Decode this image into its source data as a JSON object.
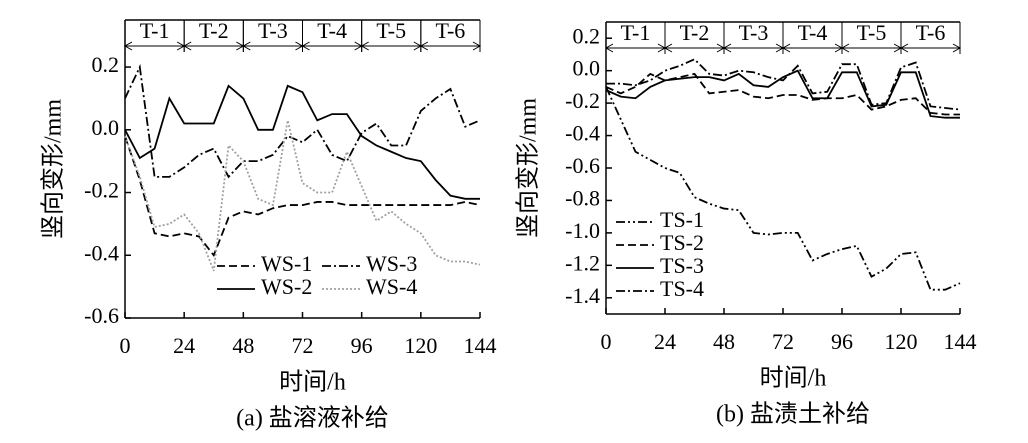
{
  "chart_data": [
    {
      "type": "line",
      "caption": "(a) 盐溶液补给",
      "xlabel": "时间/h",
      "ylabel": "竖向变形/mm",
      "x": [
        0,
        6,
        12,
        18,
        24,
        30,
        36,
        42,
        48,
        54,
        60,
        66,
        72,
        78,
        84,
        90,
        96,
        102,
        108,
        114,
        120,
        126,
        132,
        138,
        144
      ],
      "xlim": [
        0,
        144
      ],
      "xticks": [
        0,
        24,
        48,
        72,
        96,
        120,
        144
      ],
      "ylim": [
        -0.6,
        0.35
      ],
      "yticks": [
        0.2,
        {
          "value": 0,
          "label": "0.0"
        },
        -0.2,
        -0.4,
        -0.6
      ],
      "legend": "lower right",
      "legend_columns": 2,
      "periods": [
        {
          "label": "T-1",
          "start": 0,
          "end": 24
        },
        {
          "label": "T-2",
          "start": 24,
          "end": 48
        },
        {
          "label": "T-3",
          "start": 48,
          "end": 72
        },
        {
          "label": "T-4",
          "start": 72,
          "end": 96
        },
        {
          "label": "T-5",
          "start": 96,
          "end": 120
        },
        {
          "label": "T-6",
          "start": 120,
          "end": 144
        }
      ],
      "series": [
        {
          "name": "WS-1",
          "color": "#000000",
          "style": "dashed",
          "values": [
            -0.02,
            -0.16,
            -0.33,
            -0.34,
            -0.33,
            -0.34,
            -0.4,
            -0.28,
            -0.26,
            -0.27,
            -0.25,
            -0.24,
            -0.24,
            -0.23,
            -0.23,
            -0.24,
            -0.24,
            -0.24,
            -0.24,
            -0.24,
            -0.24,
            -0.24,
            -0.24,
            -0.23,
            -0.24
          ]
        },
        {
          "name": "WS-3",
          "color": "#000000",
          "style": "dashdot",
          "values": [
            0.1,
            0.2,
            -0.15,
            -0.15,
            -0.12,
            -0.08,
            -0.06,
            -0.15,
            -0.1,
            -0.1,
            -0.08,
            -0.02,
            -0.04,
            0.0,
            -0.08,
            -0.1,
            -0.01,
            0.02,
            -0.05,
            -0.05,
            0.06,
            0.1,
            0.13,
            0.01,
            0.03
          ]
        },
        {
          "name": "WS-2",
          "color": "#000000",
          "style": "solid",
          "values": [
            0.0,
            -0.09,
            -0.06,
            0.1,
            0.02,
            0.02,
            0.02,
            0.14,
            0.1,
            0.0,
            0.0,
            0.14,
            0.12,
            0.03,
            0.05,
            0.05,
            -0.02,
            -0.05,
            -0.07,
            -0.09,
            -0.1,
            -0.16,
            -0.21,
            -0.22,
            -0.22
          ]
        },
        {
          "name": "WS-4",
          "color": "#a0a0a0",
          "style": "dotted",
          "values": [
            -0.02,
            -0.15,
            -0.31,
            -0.3,
            -0.27,
            -0.33,
            -0.45,
            -0.05,
            -0.1,
            -0.22,
            -0.24,
            0.03,
            -0.17,
            -0.2,
            -0.2,
            -0.07,
            -0.18,
            -0.29,
            -0.26,
            -0.3,
            -0.33,
            -0.4,
            -0.42,
            -0.42,
            -0.43
          ]
        }
      ]
    },
    {
      "type": "line",
      "caption": "(b) 盐渍土补给",
      "xlabel": "时间/h",
      "ylabel": "竖向变形/mm",
      "x": [
        0,
        6,
        12,
        18,
        24,
        30,
        36,
        42,
        48,
        54,
        60,
        66,
        72,
        78,
        84,
        90,
        96,
        102,
        108,
        114,
        120,
        126,
        132,
        138,
        144
      ],
      "xlim": [
        0,
        144
      ],
      "xticks": [
        0,
        24,
        48,
        72,
        96,
        120,
        144
      ],
      "ylim": [
        -1.5,
        0.3
      ],
      "yticks": [
        0.2,
        {
          "value": 0,
          "label": "0.0"
        },
        -0.2,
        -0.4,
        -0.6,
        -0.8,
        {
          "value": -1,
          "label": "-1.0"
        },
        -1.2,
        -1.4
      ],
      "legend": "lower left",
      "legend_columns": 1,
      "periods": [
        {
          "label": "T-1",
          "start": 0,
          "end": 24
        },
        {
          "label": "T-2",
          "start": 24,
          "end": 48
        },
        {
          "label": "T-3",
          "start": 48,
          "end": 72
        },
        {
          "label": "T-4",
          "start": 72,
          "end": 96
        },
        {
          "label": "T-5",
          "start": 96,
          "end": 120
        },
        {
          "label": "T-6",
          "start": 120,
          "end": 144
        }
      ],
      "series": [
        {
          "name": "TS-1",
          "color": "#000000",
          "style": "dashdotdot",
          "values": [
            -0.1,
            -0.3,
            -0.5,
            -0.55,
            -0.6,
            -0.63,
            -0.78,
            -0.82,
            -0.85,
            -0.86,
            -1.0,
            -1.01,
            -1.0,
            -1.0,
            -1.17,
            -1.13,
            -1.1,
            -1.08,
            -1.27,
            -1.22,
            -1.13,
            -1.12,
            -1.35,
            -1.35,
            -1.31
          ]
        },
        {
          "name": "TS-2",
          "color": "#000000",
          "style": "dashed",
          "values": [
            -0.1,
            -0.14,
            -0.1,
            -0.02,
            -0.06,
            -0.04,
            -0.02,
            -0.14,
            -0.13,
            -0.12,
            -0.16,
            -0.17,
            -0.15,
            -0.15,
            -0.18,
            -0.17,
            -0.17,
            -0.15,
            -0.24,
            -0.22,
            -0.18,
            -0.17,
            -0.26,
            -0.27,
            -0.27
          ]
        },
        {
          "name": "TS-3",
          "color": "#000000",
          "style": "solid",
          "values": [
            -0.12,
            -0.16,
            -0.17,
            -0.1,
            -0.06,
            -0.05,
            -0.04,
            -0.04,
            -0.06,
            -0.02,
            -0.09,
            -0.1,
            -0.04,
            0.0,
            -0.17,
            -0.17,
            -0.01,
            -0.01,
            -0.22,
            -0.21,
            -0.01,
            -0.01,
            -0.28,
            -0.29,
            -0.29
          ]
        },
        {
          "name": "TS-4",
          "color": "#000000",
          "style": "dashdot",
          "values": [
            -0.08,
            -0.08,
            -0.09,
            -0.06,
            0.0,
            0.03,
            0.07,
            -0.02,
            -0.03,
            0.0,
            -0.01,
            -0.04,
            -0.06,
            0.03,
            -0.14,
            -0.13,
            0.04,
            0.04,
            -0.21,
            -0.2,
            0.02,
            0.05,
            -0.22,
            -0.23,
            -0.24
          ]
        }
      ]
    }
  ]
}
